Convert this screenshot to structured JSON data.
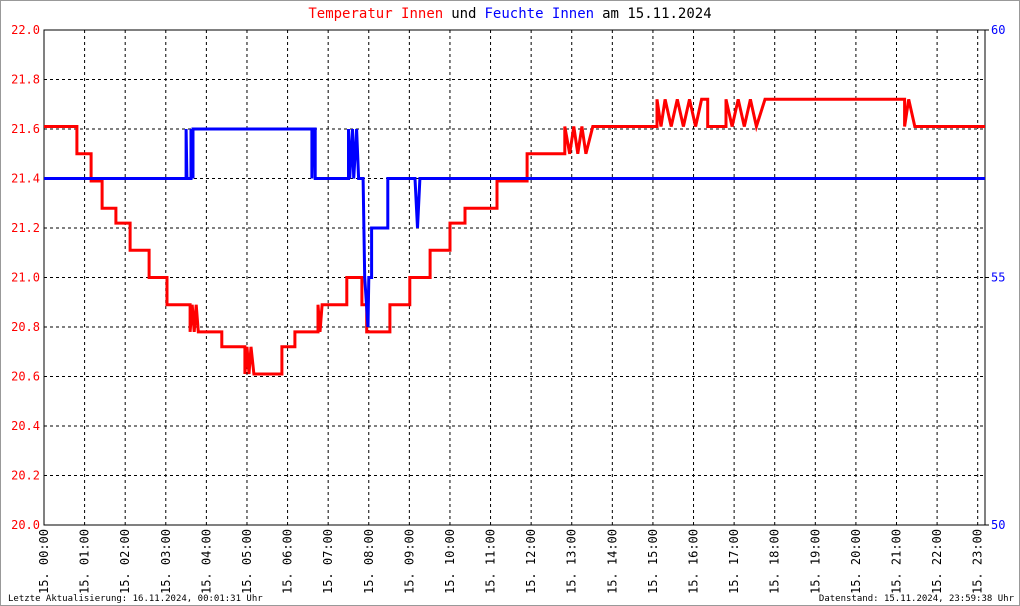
{
  "chart_data": {
    "type": "line",
    "title_joiner": "und",
    "title_suffix": "am 15.11.2024",
    "footer_left": "Letzte Aktualisierung: 16.11.2024, 00:01:31 Uhr",
    "footer_right": "Datenstand: 15.11.2024, 23:59:38 Uhr",
    "grid": true,
    "xlim": [
      0,
      23.18
    ],
    "xticks": [
      {
        "value": 0,
        "label": "15. 00:00"
      },
      {
        "value": 1,
        "label": "15. 01:00"
      },
      {
        "value": 2,
        "label": "15. 02:00"
      },
      {
        "value": 3,
        "label": "15. 03:00"
      },
      {
        "value": 4,
        "label": "15. 04:00"
      },
      {
        "value": 5,
        "label": "15. 05:00"
      },
      {
        "value": 6,
        "label": "15. 06:00"
      },
      {
        "value": 7,
        "label": "15. 07:00"
      },
      {
        "value": 8,
        "label": "15. 08:00"
      },
      {
        "value": 9,
        "label": "15. 09:00"
      },
      {
        "value": 10,
        "label": "15. 10:00"
      },
      {
        "value": 11,
        "label": "15. 11:00"
      },
      {
        "value": 12,
        "label": "15. 12:00"
      },
      {
        "value": 13,
        "label": "15. 13:00"
      },
      {
        "value": 14,
        "label": "15. 14:00"
      },
      {
        "value": 15,
        "label": "15. 15:00"
      },
      {
        "value": 16,
        "label": "15. 16:00"
      },
      {
        "value": 17,
        "label": "15. 17:00"
      },
      {
        "value": 18,
        "label": "15. 18:00"
      },
      {
        "value": 19,
        "label": "15. 19:00"
      },
      {
        "value": 20,
        "label": "15. 20:00"
      },
      {
        "value": 21,
        "label": "15. 21:00"
      },
      {
        "value": 22,
        "label": "15. 22:00"
      },
      {
        "value": 23,
        "label": "15. 23:00"
      }
    ],
    "ylim": [
      20,
      22
    ],
    "yticks": [
      {
        "value": 20,
        "label": "20.0"
      },
      20.2,
      20.4,
      20.6,
      20.8,
      {
        "value": 21,
        "label": "21.0"
      },
      21.2,
      21.4,
      21.6,
      21.8,
      {
        "value": 22,
        "label": "22.0"
      }
    ],
    "y2lim": [
      50,
      60
    ],
    "y2ticks": [
      50,
      55,
      60
    ],
    "series": [
      {
        "name": "Temperatur Innen",
        "color": "#ff0000",
        "x": [
          0,
          0.81,
          0.81,
          1.16,
          1.16,
          1.43,
          1.43,
          1.77,
          1.77,
          2.12,
          2.12,
          2.59,
          2.59,
          3.03,
          3.03,
          3.6,
          3.6,
          3.65,
          3.7,
          3.75,
          3.8,
          4.38,
          4.38,
          4.95,
          4.95,
          5.0,
          5.05,
          5.1,
          5.17,
          5.86,
          5.86,
          6.18,
          6.18,
          6.75,
          6.75,
          6.8,
          6.85,
          7.46,
          7.46,
          7.83,
          7.83,
          7.95,
          7.95,
          8.52,
          8.52,
          9.01,
          9.01,
          9.51,
          9.51,
          10.0,
          10.0,
          10.37,
          10.37,
          11.16,
          11.16,
          11.9,
          11.9,
          12.83,
          12.83,
          12.95,
          13.05,
          13.15,
          13.25,
          13.35,
          13.52,
          15.1,
          15.1,
          15.2,
          15.3,
          15.45,
          15.6,
          15.75,
          15.9,
          16.05,
          16.2,
          16.35,
          16.35,
          16.8,
          16.8,
          16.95,
          17.1,
          17.25,
          17.4,
          17.55,
          17.76,
          21.2,
          21.2,
          21.3,
          21.45,
          23.18
        ],
        "values": [
          21.61,
          21.61,
          21.5,
          21.5,
          21.39,
          21.39,
          21.28,
          21.28,
          21.22,
          21.22,
          21.11,
          21.11,
          21.0,
          21.0,
          20.89,
          20.89,
          20.78,
          20.89,
          20.78,
          20.89,
          20.78,
          20.78,
          20.72,
          20.72,
          20.61,
          20.72,
          20.61,
          20.72,
          20.61,
          20.61,
          20.72,
          20.72,
          20.78,
          20.78,
          20.89,
          20.78,
          20.89,
          20.89,
          21.0,
          21.0,
          20.89,
          20.89,
          20.78,
          20.78,
          20.89,
          20.89,
          21.0,
          21.0,
          21.11,
          21.11,
          21.22,
          21.22,
          21.28,
          21.28,
          21.39,
          21.39,
          21.5,
          21.5,
          21.61,
          21.5,
          21.61,
          21.5,
          21.61,
          21.5,
          21.61,
          21.61,
          21.72,
          21.61,
          21.72,
          21.61,
          21.72,
          21.61,
          21.72,
          21.61,
          21.72,
          21.72,
          21.61,
          21.61,
          21.72,
          21.61,
          21.72,
          21.61,
          21.72,
          21.61,
          21.72,
          21.72,
          21.61,
          21.72,
          21.61,
          21.61
        ]
      },
      {
        "name": "Feuchte Innen",
        "color": "#0000ff",
        "axis": "y2",
        "x": [
          0,
          3.5,
          3.5,
          3.52,
          3.62,
          3.62,
          3.67,
          3.67,
          6.6,
          6.6,
          6.63,
          6.68,
          6.68,
          7.5,
          7.5,
          7.53,
          7.6,
          7.63,
          7.7,
          7.75,
          7.86,
          7.9,
          7.98,
          8.0,
          8.07,
          8.07,
          8.47,
          8.47,
          9.14,
          9.2,
          9.26,
          23.18
        ],
        "values": [
          57,
          57,
          58,
          57,
          57,
          58,
          57,
          58,
          58,
          57,
          58,
          58,
          57,
          57,
          58,
          57,
          58,
          57,
          58,
          57,
          57,
          55,
          54,
          55,
          55,
          56,
          56,
          57,
          57,
          56,
          57,
          57
        ]
      }
    ]
  }
}
